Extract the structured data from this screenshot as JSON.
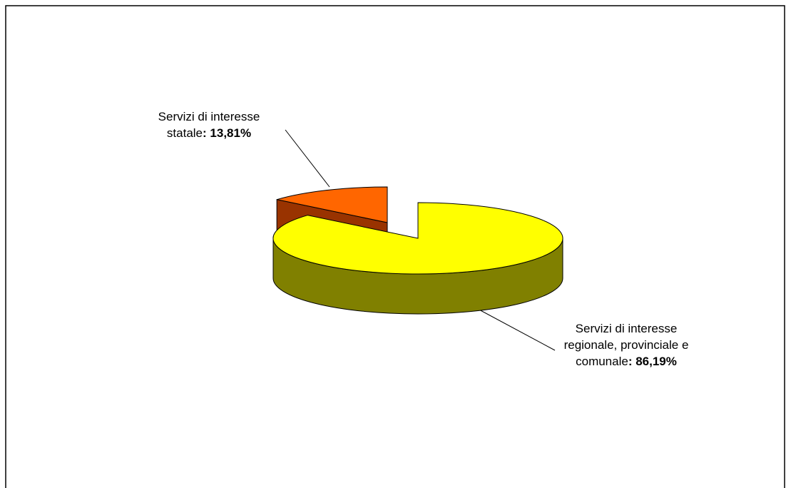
{
  "chart_data": {
    "type": "pie",
    "title": "",
    "slices": [
      {
        "label_lines": [
          "Servizi di interesse",
          "statale"
        ],
        "value_text": "13,81%",
        "value": 13.81,
        "top_color": "#FF6600",
        "side_color": "#993300",
        "exploded": true
      },
      {
        "label_lines": [
          "Servizi di interesse",
          "regionale, provinciale e",
          "comunale"
        ],
        "value_text": "86,19%",
        "value": 86.19,
        "top_color": "#FFFF00",
        "side_color": "#808000",
        "exploded": false
      }
    ],
    "separator": ": ",
    "legend": "none",
    "style": "3d"
  }
}
